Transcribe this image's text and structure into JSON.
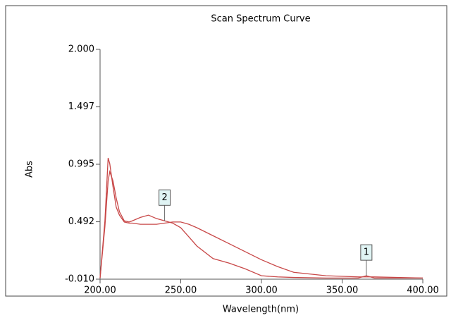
{
  "chart_data": {
    "type": "line",
    "title": "Scan Spectrum Curve",
    "x_label": "Wavelength(nm)",
    "y_label": "Abs",
    "x": [
      200,
      203,
      205,
      206,
      208,
      210,
      212,
      215,
      218,
      220,
      225,
      230,
      235,
      240,
      245,
      250,
      255,
      260,
      270,
      280,
      290,
      300,
      310,
      320,
      340,
      360,
      365,
      370,
      400
    ],
    "series": [
      {
        "color": "#c84848",
        "values": [
          0,
          0.5,
          1.05,
          1.0,
          0.8,
          0.62,
          0.55,
          0.49,
          0.48,
          0.48,
          0.47,
          0.47,
          0.47,
          0.48,
          0.49,
          0.49,
          0.47,
          0.44,
          0.37,
          0.3,
          0.23,
          0.16,
          0.1,
          0.05,
          0.02,
          0.01,
          0.01,
          0.01,
          0
        ]
      },
      {
        "color": "#c84848",
        "values": [
          0,
          0.45,
          0.85,
          0.93,
          0.85,
          0.7,
          0.58,
          0.5,
          0.49,
          0.5,
          0.53,
          0.55,
          0.52,
          0.5,
          0.48,
          0.44,
          0.36,
          0.28,
          0.17,
          0.13,
          0.08,
          0.02,
          0.01,
          0.005,
          0,
          0,
          0.02,
          0,
          0
        ]
      }
    ],
    "xlim": [
      200,
      400
    ],
    "ylim": [
      -0.01,
      2.0
    ],
    "xticks": [
      {
        "value": 200,
        "label": "200.00"
      },
      {
        "value": 250,
        "label": "250.00"
      },
      {
        "value": 300,
        "label": "300.00"
      },
      {
        "value": 350,
        "label": "350.00"
      },
      {
        "value": 400,
        "label": "400.00"
      }
    ],
    "yticks": [
      {
        "value": -0.01,
        "label": "-0.010"
      },
      {
        "value": 0.492,
        "label": "0.492"
      },
      {
        "value": 0.995,
        "label": "0.995"
      },
      {
        "value": 1.497,
        "label": "1.497"
      },
      {
        "value": 2.0,
        "label": "2.000"
      }
    ],
    "markers": [
      {
        "label": "2",
        "x": 240,
        "y": 0.5
      },
      {
        "label": "1",
        "x": 365,
        "y": 0.02
      }
    ]
  }
}
